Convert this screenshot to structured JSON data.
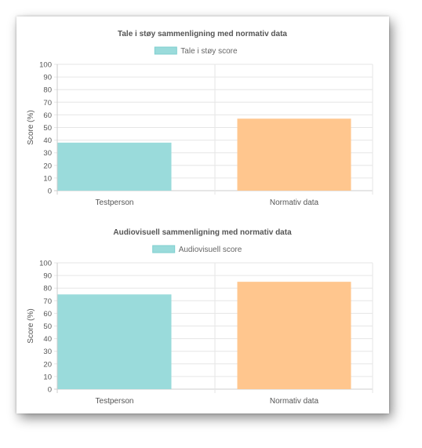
{
  "colors": {
    "series_fill": "#9adbdb",
    "series_stroke": "#7fcfcf",
    "bar_colors": [
      "#9adbdb",
      "#ffc68e"
    ]
  },
  "chart_data": [
    {
      "type": "bar",
      "title": "Tale i støy sammenligning med normativ data",
      "legend": "Tale i støy score",
      "legend_position": "top",
      "ylabel": "Score (%)",
      "xlabel": "",
      "categories": [
        "Testperson",
        "Normativ data"
      ],
      "values": [
        38,
        57
      ],
      "ylim": [
        0,
        100
      ],
      "yticks": [
        "0",
        "10",
        "20",
        "30",
        "40",
        "50",
        "60",
        "70",
        "80",
        "90",
        "100"
      ],
      "grid": true
    },
    {
      "type": "bar",
      "title": "Audiovisuell sammenligning med normativ data",
      "legend": "Audiovisuell score",
      "legend_position": "top",
      "ylabel": "Score (%)",
      "xlabel": "",
      "categories": [
        "Testperson",
        "Normativ data"
      ],
      "values": [
        75,
        85
      ],
      "ylim": [
        0,
        100
      ],
      "yticks": [
        "0",
        "10",
        "20",
        "30",
        "40",
        "50",
        "60",
        "70",
        "80",
        "90",
        "100"
      ],
      "grid": true
    }
  ]
}
